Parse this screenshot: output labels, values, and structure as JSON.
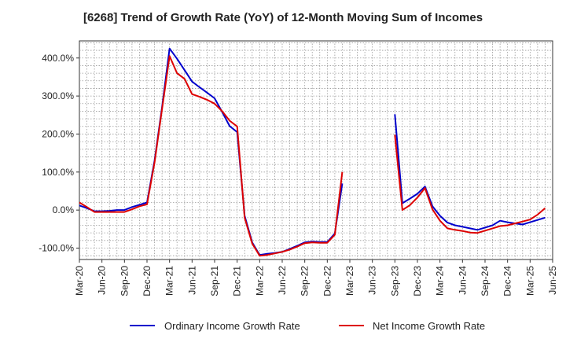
{
  "chart_data": {
    "type": "line",
    "title": "[6268]  Trend of Growth Rate (YoY) of 12-Month Moving Sum of Incomes",
    "xlabel": "",
    "ylabel": "",
    "ylim": [
      -130,
      445
    ],
    "yticks": [
      400,
      300,
      200,
      100,
      0,
      -100
    ],
    "ytick_labels": [
      "400.0%",
      "300.0%",
      "200.0%",
      "100.0%",
      "0.0%",
      "-100.0%"
    ],
    "x_tick_labels": [
      "Mar-20",
      "Jun-20",
      "Sep-20",
      "Dec-20",
      "Mar-21",
      "Jun-21",
      "Sep-21",
      "Dec-21",
      "Mar-22",
      "Jun-22",
      "Sep-22",
      "Dec-22",
      "Mar-23",
      "Jun-23",
      "Sep-23",
      "Dec-23",
      "Mar-24",
      "Jun-24",
      "Sep-24",
      "Dec-24",
      "Mar-25",
      "Jun-25"
    ],
    "x_months": [
      "2020-03",
      "2020-04",
      "2020-05",
      "2020-06",
      "2020-07",
      "2020-08",
      "2020-09",
      "2020-10",
      "2020-11",
      "2020-12",
      "2021-01",
      "2021-02",
      "2021-03",
      "2021-04",
      "2021-05",
      "2021-06",
      "2021-07",
      "2021-08",
      "2021-09",
      "2021-10",
      "2021-11",
      "2021-12",
      "2022-01",
      "2022-02",
      "2022-03",
      "2022-04",
      "2022-05",
      "2022-06",
      "2022-07",
      "2022-08",
      "2022-09",
      "2022-10",
      "2022-11",
      "2022-12",
      "2023-01",
      "2023-02",
      "2023-03",
      "2023-04",
      "2023-05",
      "2023-06",
      "2023-07",
      "2023-08",
      "2023-09",
      "2023-10",
      "2023-11",
      "2023-12",
      "2024-01",
      "2024-02",
      "2024-03",
      "2024-04",
      "2024-05",
      "2024-06",
      "2024-07",
      "2024-08",
      "2024-09",
      "2024-10",
      "2024-11",
      "2024-12",
      "2025-01",
      "2025-02",
      "2025-03",
      "2025-04",
      "2025-05",
      "2025-06"
    ],
    "grid": true,
    "legend_position": "bottom",
    "series": [
      {
        "name": "Ordinary Income Growth Rate",
        "color": "#0000cc",
        "values": [
          12,
          5,
          -3,
          -3,
          -2,
          0,
          0,
          8,
          14,
          20,
          130,
          270,
          425,
          398,
          368,
          338,
          323,
          309,
          294,
          258,
          221,
          205,
          -15,
          -85,
          -118,
          -115,
          -113,
          -110,
          -102,
          -94,
          -85,
          -83,
          -84,
          -84,
          -62,
          70,
          null,
          null,
          null,
          null,
          null,
          null,
          252,
          18,
          30,
          43,
          62,
          10,
          -15,
          -33,
          -40,
          -44,
          -48,
          -52,
          -46,
          -40,
          -28,
          -32,
          -35,
          -38,
          -32,
          -26,
          -20,
          null
        ]
      },
      {
        "name": "Net Income Growth Rate",
        "color": "#dd0000",
        "values": [
          20,
          8,
          -5,
          -5,
          -5,
          -5,
          -5,
          2,
          10,
          15,
          125,
          265,
          405,
          360,
          345,
          305,
          298,
          290,
          280,
          260,
          235,
          220,
          -20,
          -88,
          -120,
          -118,
          -114,
          -110,
          -104,
          -96,
          -87,
          -85,
          -86,
          -86,
          -65,
          100,
          null,
          null,
          null,
          null,
          null,
          null,
          198,
          0,
          13,
          33,
          58,
          2,
          -28,
          -48,
          -52,
          -55,
          -59,
          -60,
          -54,
          -48,
          -42,
          -40,
          -35,
          -30,
          -25,
          -12,
          5,
          null
        ]
      }
    ]
  }
}
